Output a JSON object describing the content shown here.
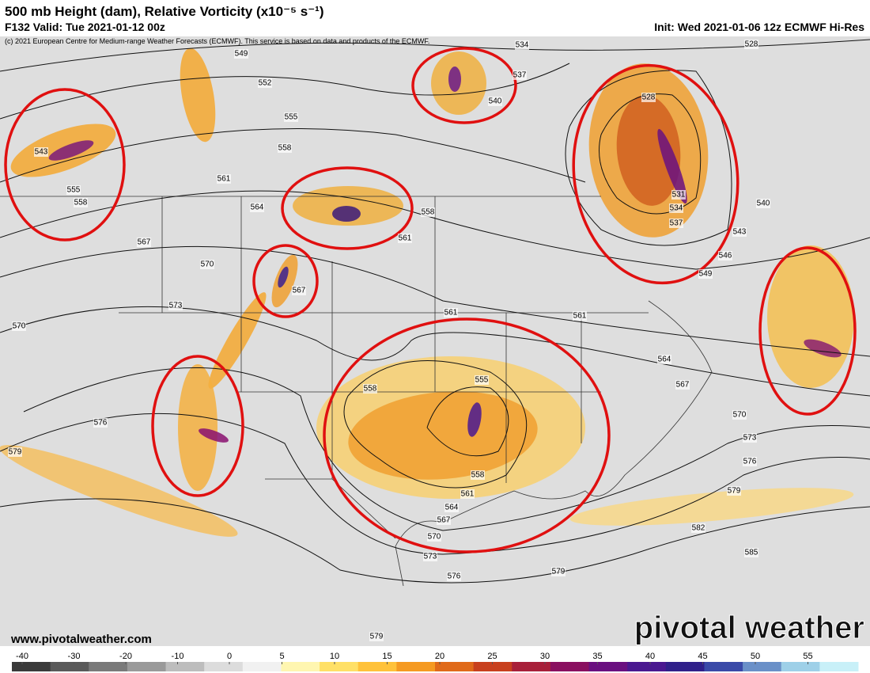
{
  "header": {
    "title": "500 mb Height (dam), Relative Vorticity (x10⁻⁵ s⁻¹)",
    "valid": "F132 Valid: Tue 2021-01-12 00z",
    "init": "Init: Wed 2021-01-06 12z ECMWF Hi-Res",
    "copyright": "(c) 2021 European Centre for Medium-range Weather Forecasts (ECMWF). This service is based on data and products of the ECMWF."
  },
  "contour_labels": [
    "549",
    "552",
    "555",
    "558",
    "561",
    "564",
    "567",
    "570",
    "573",
    "570",
    "576",
    "579",
    "543",
    "555",
    "558",
    "534",
    "537",
    "540",
    "528",
    "528",
    "531",
    "534",
    "537",
    "540",
    "543",
    "546",
    "549",
    "558",
    "561",
    "567",
    "561",
    "561",
    "564",
    "567",
    "570",
    "573",
    "576",
    "579",
    "582",
    "585",
    "579",
    "576",
    "573",
    "570",
    "567",
    "564",
    "561",
    "558",
    "555",
    "558",
    "579"
  ],
  "colorbar": {
    "ticks": [
      -40,
      -30,
      -20,
      -10,
      0,
      5,
      10,
      15,
      20,
      25,
      30,
      35,
      40,
      45,
      50,
      55
    ],
    "colors": [
      "#3a3a3a",
      "#5a5a5a",
      "#7a7a7a",
      "#9a9a9a",
      "#bdbdbd",
      "#dcdcdc",
      "#f1f1f1",
      "#fff6b0",
      "#ffe066",
      "#ffc23a",
      "#f59a22",
      "#e06a1a",
      "#c8401e",
      "#a8203a",
      "#8a1060",
      "#6a1080",
      "#4a1890",
      "#30208a",
      "#3a4aa8",
      "#6a90c8",
      "#9ed0e8",
      "#c8f0f8"
    ]
  },
  "footer": {
    "url": "www.pivotalweather.com",
    "brand": "pivotal weather"
  }
}
